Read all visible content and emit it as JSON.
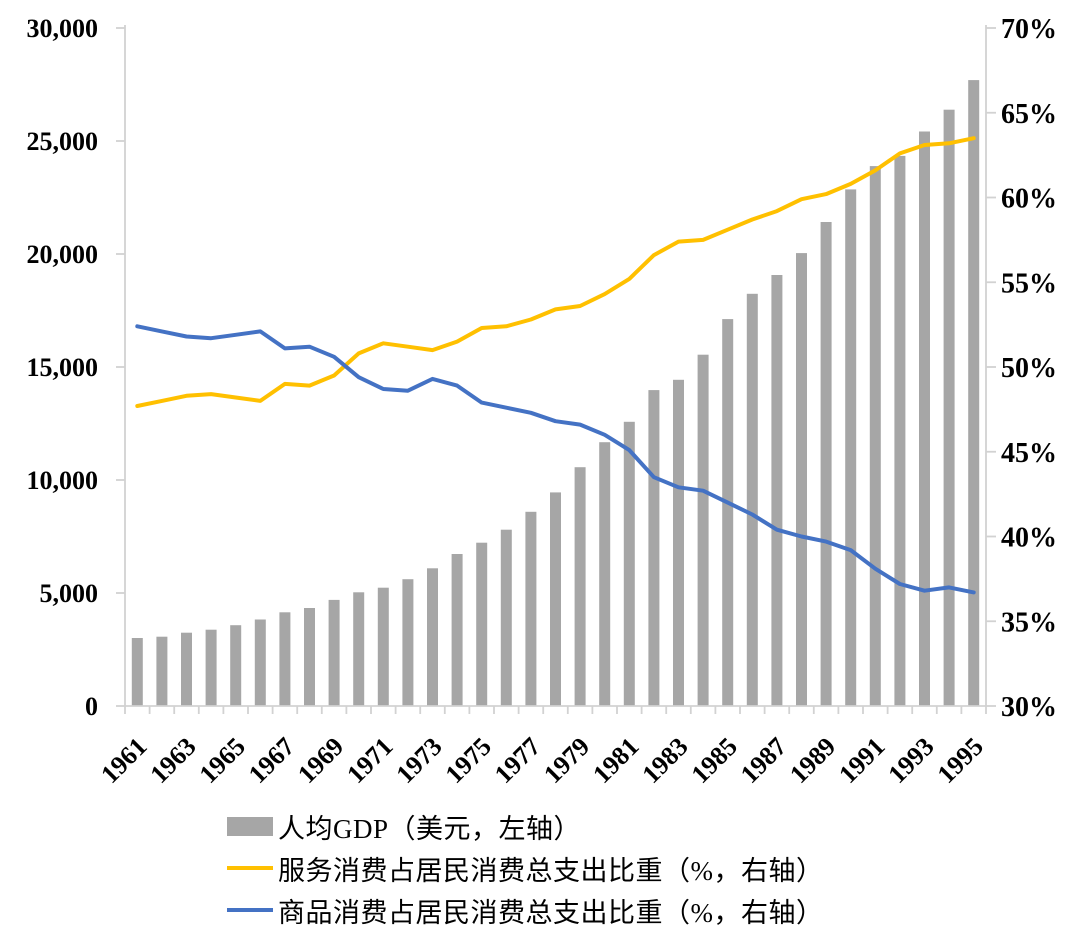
{
  "chart_data": {
    "type": "bar",
    "subtype": "bar+line combo, dual axis",
    "grid": false,
    "legend_position": "bottom-left",
    "categories": [
      "1961",
      "1962",
      "1963",
      "1964",
      "1965",
      "1966",
      "1967",
      "1968",
      "1969",
      "1970",
      "1971",
      "1972",
      "1973",
      "1974",
      "1975",
      "1976",
      "1977",
      "1978",
      "1979",
      "1980",
      "1981",
      "1982",
      "1983",
      "1984",
      "1985",
      "1986",
      "1987",
      "1988",
      "1989",
      "1990",
      "1991",
      "1992",
      "1993",
      "1994",
      "1995"
    ],
    "x_axis": {
      "label_every_n": 2,
      "labels_shown": [
        "1961",
        "1963",
        "1965",
        "1967",
        "1969",
        "1971",
        "1973",
        "1975",
        "1977",
        "1979",
        "1981",
        "1983",
        "1985",
        "1987",
        "1989",
        "1991",
        "1993",
        "1995"
      ],
      "label_rotation_deg": -45
    },
    "left_axis": {
      "min": 0,
      "max": 30000,
      "step": 5000,
      "tick_labels": [
        "0",
        "5,000",
        "10,000",
        "15,000",
        "20,000",
        "25,000",
        "30,000"
      ]
    },
    "right_axis": {
      "min": 30,
      "max": 70,
      "step": 5,
      "tick_labels": [
        "30%",
        "35%",
        "40%",
        "45%",
        "50%",
        "55%",
        "60%",
        "65%",
        "70%"
      ]
    },
    "series": [
      {
        "name": "人均GDP（美元，左轴）",
        "type": "bar",
        "axis": "left",
        "color": "#A6A6A6",
        "values": [
          3007,
          3067,
          3244,
          3375,
          3574,
          3828,
          4146,
          4336,
          4696,
          5032,
          5234,
          5609,
          6094,
          6726,
          7226,
          7801,
          8592,
          9453,
          10565,
          11674,
          12575,
          13976,
          14434,
          15544,
          17121,
          18237,
          19071,
          20039,
          21417,
          22857,
          23889,
          24342,
          25419,
          26387,
          27695
        ]
      },
      {
        "name": "服务消费占居民消费总支出比重（%，右轴）",
        "type": "line",
        "axis": "right",
        "color": "#FFC000",
        "values": [
          47.7,
          48.0,
          48.3,
          48.4,
          48.2,
          48.0,
          49.0,
          48.9,
          49.5,
          50.8,
          51.4,
          51.2,
          51.0,
          51.5,
          52.3,
          52.4,
          52.8,
          53.4,
          53.6,
          54.3,
          55.2,
          56.6,
          57.4,
          57.5,
          58.1,
          58.7,
          59.2,
          59.9,
          60.2,
          60.8,
          61.6,
          62.6,
          63.1,
          63.2,
          63.5
        ]
      },
      {
        "name": "商品消费占居民消费总支出比重（%，右轴）",
        "type": "line",
        "axis": "right",
        "color": "#4472C4",
        "values": [
          52.4,
          52.1,
          51.8,
          51.7,
          51.9,
          52.1,
          51.1,
          51.2,
          50.6,
          49.4,
          48.7,
          48.6,
          49.3,
          48.9,
          47.9,
          47.6,
          47.3,
          46.8,
          46.6,
          46.0,
          45.1,
          43.5,
          42.9,
          42.7,
          42.0,
          41.3,
          40.4,
          40.0,
          39.7,
          39.2,
          38.1,
          37.2,
          36.8,
          37.0,
          36.7
        ]
      }
    ]
  },
  "legend": {
    "items": [
      {
        "label": "人均GDP（美元，左轴）",
        "marker": "bar",
        "color": "#A6A6A6"
      },
      {
        "label": "服务消费占居民消费总支出比重（%，右轴）",
        "marker": "line",
        "color": "#FFC000"
      },
      {
        "label": "商品消费占居民消费总支出比重（%，右轴）",
        "marker": "line",
        "color": "#4472C4"
      }
    ]
  },
  "colors": {
    "bar_gray": "#A6A6A6",
    "services_yellow": "#FFC000",
    "goods_blue": "#4472C4",
    "axis_line": "#D2D2D2",
    "text": "#000000",
    "background": "#FFFFFF"
  }
}
